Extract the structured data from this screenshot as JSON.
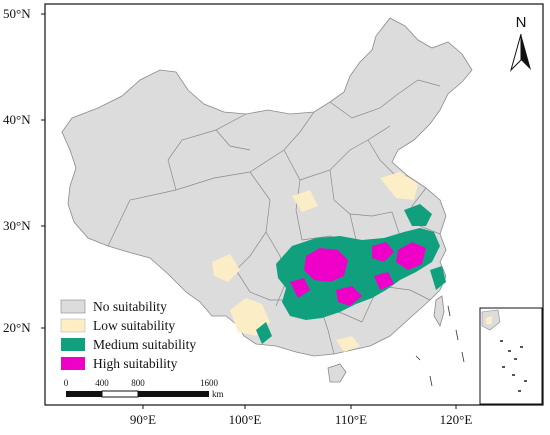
{
  "map": {
    "lat_ticks": [
      "50°N",
      "40°N",
      "30°N",
      "20°N"
    ],
    "lon_ticks": [
      "90°E",
      "100°E",
      "110°E",
      "120°E"
    ],
    "north_label": "N",
    "colors": {
      "land": "#dcdcdc",
      "border": "#8a8a8a",
      "low": "#fdeec4",
      "medium": "#10a07e",
      "high": "#ee00c8"
    }
  },
  "legend": {
    "items": [
      {
        "label": "No suitability",
        "color": "#dcdcdc"
      },
      {
        "label": "Low suitability",
        "color": "#fdeec4"
      },
      {
        "label": "Medium suitability",
        "color": "#10a07e"
      },
      {
        "label": "High suitability",
        "color": "#ee00c8"
      }
    ]
  },
  "scale_bar": {
    "ticks": [
      "0",
      "400",
      "800",
      "1600"
    ],
    "unit": "km"
  }
}
